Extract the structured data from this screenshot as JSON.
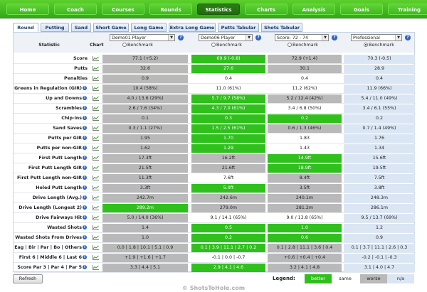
{
  "topnav": {
    "tabs": [
      "Home",
      "Coach",
      "Courses",
      "Rounds",
      "Statistics",
      "Charts",
      "Analysis",
      "Goals",
      "Training"
    ],
    "active": "Statistics"
  },
  "subtabs": {
    "items": [
      "Round",
      "Putting",
      "Sand",
      "Short Game",
      "Long Game",
      "Extra Long Game",
      "Putts Tabular",
      "Shots Tabular"
    ],
    "active": "Round"
  },
  "header": {
    "statistic": "Statistic",
    "chart": "Chart",
    "columns": [
      {
        "select": "Demo01 Player",
        "benchmark": "Benchmark",
        "benchmark_selected": false
      },
      {
        "select": "Demo06 Player",
        "benchmark": "Benchmark",
        "benchmark_selected": false
      },
      {
        "select": "Score: 72 - 74",
        "benchmark": "Benchmark",
        "benchmark_selected": false
      },
      {
        "select": "Professional",
        "benchmark": "Benchmark",
        "benchmark_selected": true
      }
    ],
    "help": "?"
  },
  "rows": [
    {
      "label": "Score",
      "info": false,
      "cells": [
        [
          "77.1 (+5.2)",
          "worse"
        ],
        [
          "69.9 (-0.8)",
          "better"
        ],
        [
          "72.9 (+1.4)",
          "worse"
        ],
        [
          "70.3 (-0.5)",
          "na"
        ]
      ]
    },
    {
      "label": "Putts",
      "info": false,
      "cells": [
        [
          "32.6",
          "worse"
        ],
        [
          "27.6",
          "better"
        ],
        [
          "30.1",
          "worse"
        ],
        [
          "28.9",
          "na"
        ]
      ]
    },
    {
      "label": "Penalties",
      "info": false,
      "cells": [
        [
          "0.9",
          "worse"
        ],
        [
          "0.4",
          "same"
        ],
        [
          "0.4",
          "same"
        ],
        [
          "0.4",
          "na"
        ]
      ]
    },
    {
      "label": "Greens in Regulation (GIR)",
      "info": true,
      "cells": [
        [
          "10.4 (58%)",
          "worse"
        ],
        [
          "11.0 (61%)",
          "same"
        ],
        [
          "11.2 (62%)",
          "same"
        ],
        [
          "11.9 (66%)",
          "na"
        ]
      ]
    },
    {
      "label": "Up and Downs",
      "info": true,
      "cells": [
        [
          "4.0 / 13.6 (29%)",
          "worse"
        ],
        [
          "5.7 / 9.7 (58%)",
          "better"
        ],
        [
          "5.2 / 12.4 (42%)",
          "worse"
        ],
        [
          "5.4 / 11.0 (49%)",
          "na"
        ]
      ]
    },
    {
      "label": "Scrambles",
      "info": true,
      "cells": [
        [
          "2.6 / 7.6 (34%)",
          "worse"
        ],
        [
          "4.3 / 7.0 (61%)",
          "better"
        ],
        [
          "3.4 / 6.8 (50%)",
          "same"
        ],
        [
          "3.4 / 6.1 (55%)",
          "na"
        ]
      ]
    },
    {
      "label": "Chip-ins",
      "info": true,
      "cells": [
        [
          "0.1",
          "worse"
        ],
        [
          "0.3",
          "better"
        ],
        [
          "0.2",
          "better"
        ],
        [
          "0.2",
          "na"
        ]
      ]
    },
    {
      "label": "Sand Saves",
      "info": true,
      "cells": [
        [
          "0.3 / 1.1 (27%)",
          "worse"
        ],
        [
          "1.5 / 2.5 (61%)",
          "better"
        ],
        [
          "0.6 / 1.3 (46%)",
          "worse"
        ],
        [
          "0.7 / 1.4 (49%)",
          "na"
        ]
      ]
    },
    {
      "label": "Putts per GIR",
      "info": true,
      "cells": [
        [
          "1.95",
          "worse"
        ],
        [
          "1.70",
          "better"
        ],
        [
          "1.83",
          "same"
        ],
        [
          "1.76",
          "na"
        ]
      ]
    },
    {
      "label": "Putts per non-GIR",
      "info": true,
      "cells": [
        [
          "1.62",
          "worse"
        ],
        [
          "1.29",
          "better"
        ],
        [
          "1.43",
          "same"
        ],
        [
          "1.34",
          "na"
        ]
      ]
    },
    {
      "label": "First Putt Length",
      "info": true,
      "cells": [
        [
          "17.3ft",
          "worse"
        ],
        [
          "16.2ft",
          "worse"
        ],
        [
          "14.9ft",
          "better"
        ],
        [
          "15.6ft",
          "na"
        ]
      ]
    },
    {
      "label": "First Putt Length GIR",
      "info": true,
      "cells": [
        [
          "21.5ft",
          "worse"
        ],
        [
          "21.6ft",
          "worse"
        ],
        [
          "18.9ft",
          "better"
        ],
        [
          "19.5ft",
          "na"
        ]
      ]
    },
    {
      "label": "First Putt Length non-GIR",
      "info": true,
      "cells": [
        [
          "11.3ft",
          "worse"
        ],
        [
          "7.6ft",
          "same"
        ],
        [
          "8.4ft",
          "worse"
        ],
        [
          "7.5ft",
          "na"
        ]
      ]
    },
    {
      "label": "Holed Putt Length",
      "info": true,
      "cells": [
        [
          "3.3ft",
          "worse"
        ],
        [
          "5.0ft",
          "better"
        ],
        [
          "3.5ft",
          "worse"
        ],
        [
          "3.8ft",
          "na"
        ]
      ]
    },
    {
      "label": "Drive Length (Avg.)",
      "info": true,
      "cells": [
        [
          "242.7m",
          "worse"
        ],
        [
          "242.6m",
          "worse"
        ],
        [
          "240.1m",
          "worse"
        ],
        [
          "248.3m",
          "na"
        ]
      ]
    },
    {
      "label": "Drive Length (Longest 2)",
      "info": true,
      "cells": [
        [
          "289.2m",
          "better"
        ],
        [
          "279.0m",
          "worse"
        ],
        [
          "281.2m",
          "worse"
        ],
        [
          "286.1m",
          "na"
        ]
      ]
    },
    {
      "label": "Drive Fairways Hit",
      "info": true,
      "cells": [
        [
          "5.0 / 14.0 (36%)",
          "worse"
        ],
        [
          "9.1 / 14.1 (65%)",
          "same"
        ],
        [
          "9.0 / 13.8 (65%)",
          "same"
        ],
        [
          "9.5 / 13.7 (69%)",
          "na"
        ]
      ]
    },
    {
      "label": "Wasted Shots",
      "info": true,
      "cells": [
        [
          "1.4",
          "worse"
        ],
        [
          "0.5",
          "better"
        ],
        [
          "1.0",
          "better"
        ],
        [
          "1.2",
          "na"
        ]
      ]
    },
    {
      "label": "Wasted Shots From Drives",
      "info": true,
      "cells": [
        [
          "1.0",
          "worse"
        ],
        [
          "0.2",
          "better"
        ],
        [
          "0.6",
          "better"
        ],
        [
          "0.9",
          "na"
        ]
      ]
    },
    {
      "label": "Eag | Bir | Par | Bo | Others",
      "info": true,
      "cells": [
        [
          "0.0 | 1.8 | 10.1 | 5.1 | 0.9",
          "worse"
        ],
        [
          "0.1 | 3.9 | 11.1 | 2.7 | 0.2",
          "better"
        ],
        [
          "0.1 | 2.8 | 11.1 | 3.6 | 0.4",
          "worse"
        ],
        [
          "0.1 | 3.7 | 11.1 | 2.6 | 0.3",
          "na"
        ]
      ]
    },
    {
      "label": "First 6 | Middle 6 | Last 6",
      "info": true,
      "cells": [
        [
          "+1.9 | +1.6 | +1.7",
          "worse"
        ],
        [
          "-0.1 | 0.0 | -0.7",
          "same"
        ],
        [
          "+0.6 | +0.4 | +0.4",
          "worse"
        ],
        [
          "-0.2 | -0.1 | -0.3",
          "na"
        ]
      ]
    },
    {
      "label": "Score Par 3 | Par 4 | Par 5",
      "info": true,
      "cells": [
        [
          "3.3 | 4.4 | 5.1",
          "worse"
        ],
        [
          "2.9 | 4.1 | 4.6",
          "better"
        ],
        [
          "3.2 | 4.1 | 4.8",
          "worse"
        ],
        [
          "3.1 | 4.0 | 4.7",
          "na"
        ]
      ]
    }
  ],
  "footer": {
    "refresh": "Refresh",
    "legend_label": "Legend:",
    "legend": [
      {
        "label": "better",
        "style": "better"
      },
      {
        "label": "same",
        "style": "same"
      },
      {
        "label": "worse",
        "style": "worse"
      },
      {
        "label": "n/a",
        "style": "na"
      }
    ],
    "brand": "© ShotsToHole.com"
  },
  "colors": {
    "better": "#2fc01c",
    "worse": "#b9b9b9",
    "na": "#dbe6f4",
    "same": "#ffffff",
    "nav": "#3fb820"
  }
}
